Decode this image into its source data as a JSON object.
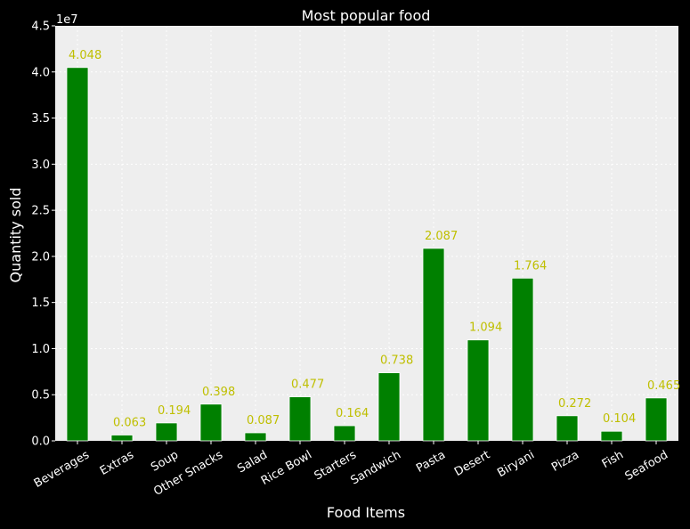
{
  "chart_data": {
    "type": "bar",
    "title": "Most popular food",
    "xlabel": "Food Items",
    "ylabel": "Quantity sold",
    "scale_label": "1e7",
    "ylim": [
      0,
      4.5
    ],
    "yticks": [
      "0.0",
      "0.5",
      "1.0",
      "1.5",
      "2.0",
      "2.5",
      "3.0",
      "3.5",
      "4.0",
      "4.5"
    ],
    "categories": [
      "Beverages",
      "Extras",
      "Soup",
      "Other Snacks",
      "Salad",
      "Rice Bowl",
      "Starters",
      "Sandwich",
      "Pasta",
      "Desert",
      "Biryani",
      "Pizza",
      "Fish",
      "Seafood"
    ],
    "values": [
      4.048,
      0.063,
      0.194,
      0.398,
      0.087,
      0.477,
      0.164,
      0.738,
      2.087,
      1.094,
      1.764,
      0.272,
      0.104,
      0.465
    ],
    "value_labels": [
      "4.048",
      "0.063",
      "0.194",
      "0.398",
      "0.087",
      "0.477",
      "0.164",
      "0.738",
      "2.087",
      "1.094",
      "1.764",
      "0.272",
      "0.104",
      "0.465"
    ],
    "grid": true,
    "colors": {
      "bar": "#008000",
      "bar_edge": "#ffffff",
      "label": "#bfbf00",
      "axes_bg": "#eeeeee",
      "grid": "#ffffff",
      "text": "#ffffff",
      "background": "#000000"
    }
  }
}
